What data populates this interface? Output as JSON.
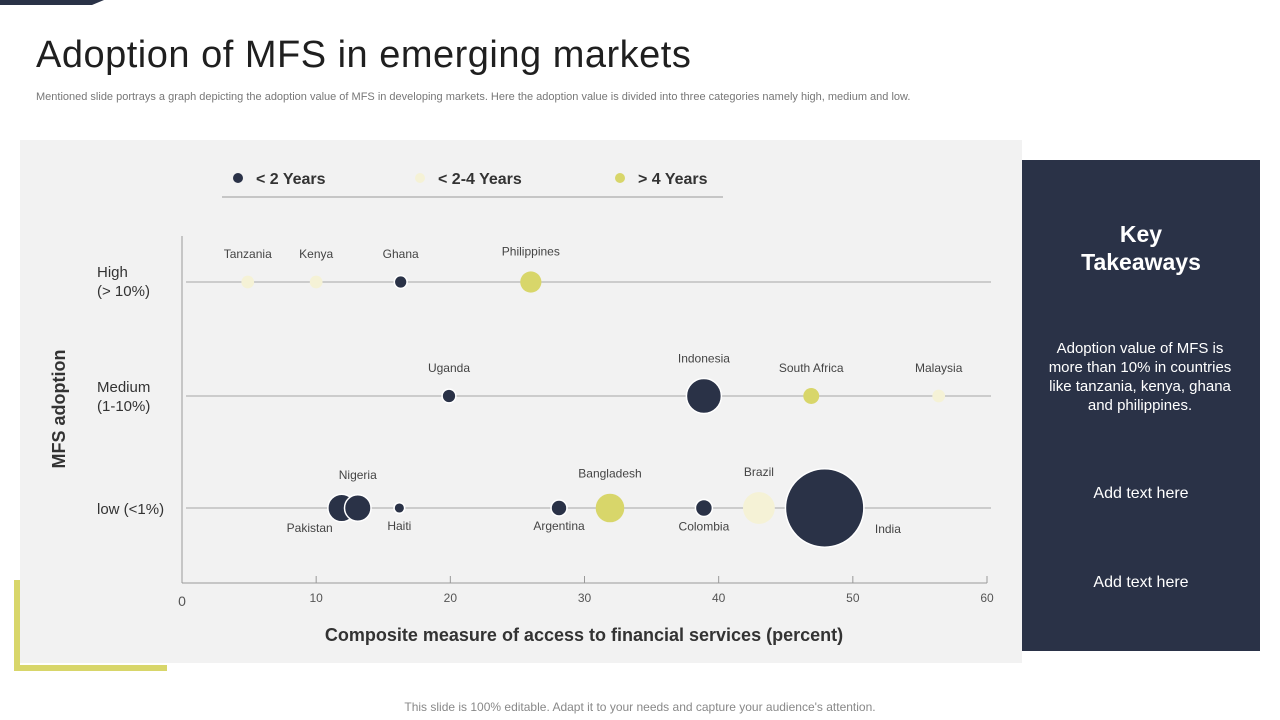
{
  "slide": {
    "title": "Adoption of MFS in emerging markets",
    "subtitle": "Mentioned slide portrays a graph depicting the adoption value of MFS  in developing markets. Here the adoption value is divided into three categories namely high, medium and low.",
    "footer": "This slide is 100% editable. Adapt it to your needs and capture your audience's attention."
  },
  "takeaways": {
    "title_line1": "Key",
    "title_line2": "Takeaways",
    "text": "Adoption value  of MFS is more than 10% in countries like tanzania, kenya, ghana and philippines.",
    "add_text_1": "Add text here",
    "add_text_2": "Add text here"
  },
  "colors": {
    "dark": "#2a3247",
    "cream": "#f5f2d6",
    "yellow": "#d8d66a",
    "axis": "#999999",
    "label": "#444444"
  },
  "chart_data": {
    "type": "scatter",
    "title": "",
    "xlabel": "Composite measure of access to financial services (percent)",
    "ylabel": "MFS adoption",
    "xlim": [
      0,
      60
    ],
    "xticks": [
      0,
      10,
      20,
      30,
      40,
      50,
      60
    ],
    "rows": [
      {
        "id": "high",
        "line1": "High",
        "line2": " (> 10%)"
      },
      {
        "id": "medium",
        "line1": "Medium",
        "line2": "(1-10%)"
      },
      {
        "id": "low",
        "line1": "low (<1%)",
        "line2": ""
      }
    ],
    "legend": [
      {
        "label": "< 2 Years",
        "color": "#2a3247"
      },
      {
        "label": "< 2-4 Years",
        "color": "#f5f2d6"
      },
      {
        "label": "> 4 Years",
        "color": "#d8d66a"
      }
    ],
    "points": [
      {
        "name": "Tanzania",
        "x": 4.9,
        "row": "high",
        "group": "< 2-4 Years",
        "size": 1.2,
        "label_pos": "above"
      },
      {
        "name": "Kenya",
        "x": 10.0,
        "row": "high",
        "group": "< 2-4 Years",
        "size": 1.2,
        "label_pos": "above"
      },
      {
        "name": "Ghana",
        "x": 16.3,
        "row": "high",
        "group": "< 2 Years",
        "size": 1.2,
        "label_pos": "above"
      },
      {
        "name": "Philippines",
        "x": 26.0,
        "row": "high",
        "group": "> 4 Years",
        "size": 2,
        "label_pos": "above"
      },
      {
        "name": "Uganda",
        "x": 19.9,
        "row": "medium",
        "group": "< 2 Years",
        "size": 1.3,
        "label_pos": "above"
      },
      {
        "name": "Indonesia",
        "x": 38.9,
        "row": "medium",
        "group": "< 2 Years",
        "size": 3.3,
        "label_pos": "above"
      },
      {
        "name": "South Africa",
        "x": 46.9,
        "row": "medium",
        "group": "> 4 Years",
        "size": 1.5,
        "label_pos": "above"
      },
      {
        "name": "Malaysia",
        "x": 56.4,
        "row": "medium",
        "group": "< 2-4 Years",
        "size": 1.2,
        "label_pos": "above"
      },
      {
        "name": "Pakistan",
        "x": 11.9,
        "row": "low",
        "group": "< 2 Years",
        "size": 2.6,
        "label_pos": "below"
      },
      {
        "name": "Nigeria",
        "x": 13.1,
        "row": "low",
        "group": "< 2 Years",
        "size": 2.5,
        "label_pos": "above"
      },
      {
        "name": "Haiti",
        "x": 16.2,
        "row": "low",
        "group": "< 2 Years",
        "size": 1,
        "label_pos": "below"
      },
      {
        "name": "Argentina",
        "x": 28.1,
        "row": "low",
        "group": "< 2 Years",
        "size": 1.5,
        "label_pos": "below"
      },
      {
        "name": "Bangladesh",
        "x": 31.9,
        "row": "low",
        "group": "> 4 Years",
        "size": 2.7,
        "label_pos": "above"
      },
      {
        "name": "Colombia",
        "x": 38.9,
        "row": "low",
        "group": "< 2 Years",
        "size": 1.6,
        "label_pos": "below"
      },
      {
        "name": "Brazil",
        "x": 43.0,
        "row": "low",
        "group": "< 2-4 Years",
        "size": 3,
        "label_pos": "above"
      },
      {
        "name": "India",
        "x": 47.9,
        "row": "low",
        "group": "< 2 Years",
        "size": 7.4,
        "label_pos": "right"
      }
    ]
  }
}
